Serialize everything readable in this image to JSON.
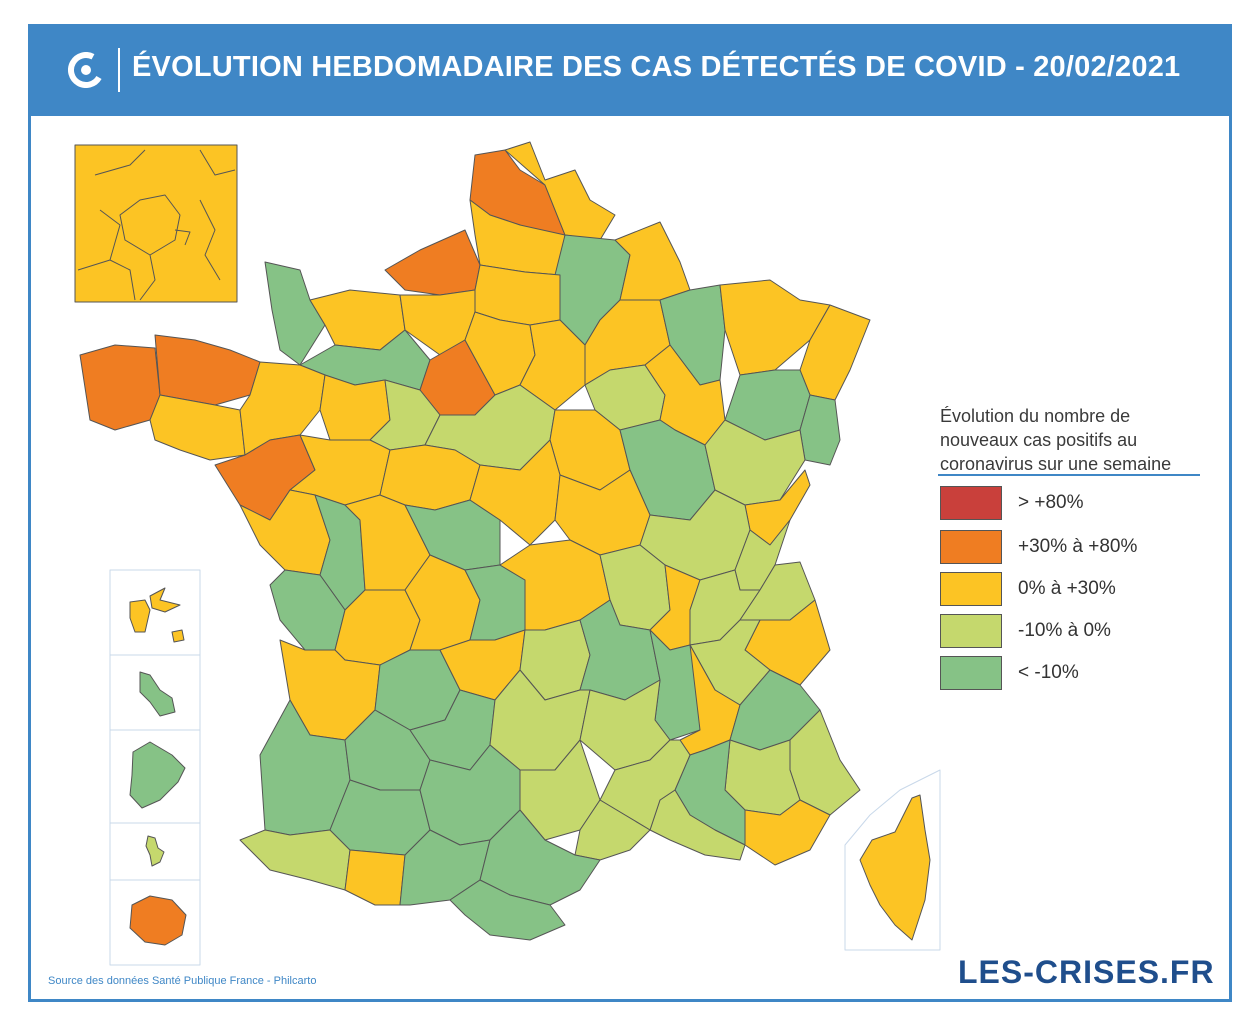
{
  "header": {
    "title": "ÉVOLUTION HEBDOMADAIRE DES CAS DÉTECTÉS DE COVID - 20/02/2021"
  },
  "legend": {
    "title": "Évolution du nombre de nouveaux cas positifs au coronavirus sur une semaine",
    "items": [
      {
        "label": "> +80%",
        "color": "#c9403b"
      },
      {
        "label": "+30% à +80%",
        "color": "#ef7d22"
      },
      {
        "label": "0% à +30%",
        "color": "#fcc424"
      },
      {
        "label": "-10% à 0%",
        "color": "#c5d86d"
      },
      {
        "label": "< -10%",
        "color": "#86c286"
      }
    ]
  },
  "footer": {
    "source": "Source des données Santé Publique France - Philcarto",
    "brand": "LES-CRISES.FR"
  },
  "colors": {
    "accent": "#3f87c6",
    "brand": "#1f4e8c",
    "gt80": "#c9403b",
    "p30_80": "#ef7d22",
    "p0_30": "#fcc424",
    "m10_0": "#c5d86d",
    "lt_m10": "#86c286"
  }
}
